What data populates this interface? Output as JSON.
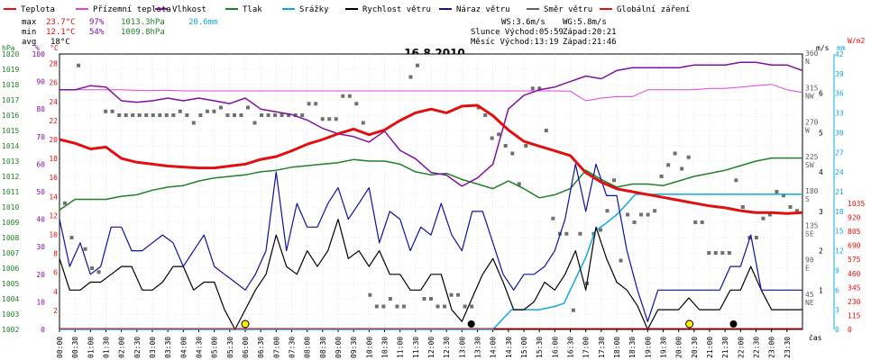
{
  "chart_data": {
    "type": "line",
    "title": "16.8.2010",
    "legend": [
      {
        "label": "Teplota",
        "color": "#e01010"
      },
      {
        "label": "Přízemní teplota",
        "color": "#e040e0"
      },
      {
        "label": "Vlhkost",
        "color": "#8010a0"
      },
      {
        "label": "Tlak",
        "color": "#20802a"
      },
      {
        "label": "Srážky",
        "color": "#10a8e0"
      },
      {
        "label": "Rychlost větru",
        "color": "#000000"
      },
      {
        "label": "Náraz větru",
        "color": "#1010a0"
      },
      {
        "label": "Směr větru",
        "color": "#606060"
      },
      {
        "label": "Globální záření",
        "color": "#e01010"
      }
    ],
    "stats": {
      "max_label": "max",
      "max_temp": "23.7°C",
      "max_hum": "97%",
      "max_press": "1013.3hPa",
      "max_rain": "20.6mm",
      "min_label": "min",
      "min_temp": "12.1°C",
      "min_hum": "54%",
      "min_press": "1009.8hPa",
      "avg_label": "avg",
      "avg_temp": "18°C",
      "ws": "WS:3.6m/s",
      "wg": "WG:5.8m/s",
      "sun_rise": "Slunce Východ:05:59",
      "sun_set": "Západ:20:21",
      "moon_rise": "Měsíc  Východ:13:19",
      "moon_set": "Západ:21:46"
    },
    "axes": {
      "hpa": {
        "unit": "hPa",
        "color": "#20802a",
        "ticks": [
          "1002",
          "1003",
          "1004",
          "1005",
          "1006",
          "1007",
          "1008",
          "1009",
          "1010",
          "1011",
          "1012",
          "1013",
          "1014",
          "1015",
          "1016",
          "1017",
          "1018",
          "1019",
          "1020"
        ],
        "range": [
          1002,
          1020
        ]
      },
      "pct": {
        "unit": "%",
        "color": "#8010a0",
        "ticks": [
          "0",
          "10",
          "20",
          "30",
          "40",
          "50",
          "60",
          "70",
          "80",
          "90",
          "100"
        ],
        "range": [
          0,
          100
        ]
      },
      "degc": {
        "unit": "°C",
        "color": "#e01010",
        "ticks": [
          "2",
          "4",
          "6",
          "8",
          "10",
          "12",
          "14",
          "16",
          "18",
          "20",
          "22",
          "24",
          "26",
          "28"
        ],
        "range": [
          0,
          29
        ]
      },
      "dir": {
        "ticks": [
          "45 NE",
          "90 E",
          "135 SE",
          "180 S",
          "225 SW",
          "270 W",
          "315 NW",
          "360 N"
        ]
      },
      "ms": {
        "unit": "m/s",
        "ticks": [
          "1",
          "2",
          "3",
          "4",
          "5",
          "6"
        ]
      },
      "mm": {
        "unit": "mm",
        "color": "#10a8e0",
        "ticks": [
          "0",
          "3",
          "6",
          "9",
          "12",
          "15",
          "18",
          "21",
          "24",
          "27",
          "30",
          "33",
          "36",
          "39",
          "42"
        ]
      },
      "wm2": {
        "unit": "W/m2",
        "color": "#e01010",
        "ticks": [
          "0",
          "115",
          "230",
          "345",
          "460",
          "575",
          "690",
          "805",
          "920",
          "1035"
        ]
      },
      "x_unit": "čas",
      "x_ticks": [
        "00:00",
        "00:30",
        "01:00",
        "01:30",
        "02:00",
        "02:30",
        "03:00",
        "03:30",
        "04:00",
        "04:30",
        "05:00",
        "05:30",
        "06:00",
        "06:30",
        "07:00",
        "07:30",
        "08:00",
        "08:30",
        "09:00",
        "09:30",
        "10:00",
        "10:30",
        "11:00",
        "11:30",
        "12:00",
        "12:30",
        "13:00",
        "13:30",
        "14:00",
        "14:30",
        "15:00",
        "15:30",
        "16:00",
        "16:30",
        "17:00",
        "17:30",
        "18:00",
        "18:30",
        "19:00",
        "19:30",
        "20:00",
        "20:30",
        "21:00",
        "21:30",
        "22:00",
        "22:30",
        "23:00",
        "23:30"
      ]
    },
    "series": [
      {
        "name": "Teplota",
        "color": "#e01010",
        "x": [
          0,
          0.5,
          1,
          1.5,
          2,
          2.5,
          3,
          3.5,
          4,
          4.5,
          5,
          5.5,
          6,
          6.5,
          7,
          7.5,
          8,
          8.5,
          9,
          9.5,
          10,
          10.5,
          11,
          11.5,
          12,
          12.5,
          13,
          13.5,
          14,
          14.5,
          15,
          15.5,
          16,
          16.5,
          17,
          17.5,
          18,
          18.5,
          19,
          19.5,
          20,
          20.5,
          21,
          21.5,
          22,
          22.5,
          23,
          23.5,
          24
        ],
        "y": [
          20,
          19.6,
          19,
          19.2,
          18,
          17.6,
          17.4,
          17.2,
          17.1,
          17,
          17,
          17.2,
          17.4,
          17.9,
          18.2,
          18.8,
          19.5,
          20,
          20.6,
          21.1,
          20.5,
          21,
          22,
          22.8,
          23.2,
          22.8,
          23.5,
          23.6,
          22.5,
          21,
          19.8,
          19.3,
          18.8,
          18.3,
          16.5,
          15.5,
          14.8,
          14.5,
          14.2,
          13.9,
          13.6,
          13.3,
          13,
          12.8,
          12.5,
          12.3,
          12.3,
          12.2,
          12.3
        ]
      },
      {
        "name": "Přízemní teplota",
        "color": "#e040e0",
        "x": [
          0,
          0.5,
          1,
          1.5,
          2,
          2.5,
          3,
          3.5,
          4,
          4.5,
          5,
          5.5,
          6,
          6.5,
          7,
          7.5,
          8,
          8.5,
          9,
          9.5,
          10,
          10.5,
          11,
          11.5,
          12,
          12.5,
          13,
          13.5,
          14,
          14.5,
          15,
          15.5,
          16,
          16.5,
          17,
          17.5,
          18,
          18.5,
          19,
          19.5,
          20,
          20.5,
          21,
          21.5,
          22,
          22.5,
          23,
          23.5,
          24
        ],
        "y": [
          87,
          87,
          87,
          87,
          87,
          86.8,
          86.8,
          86.8,
          86.6,
          86.6,
          86.6,
          86.6,
          86.6,
          86.6,
          86.6,
          86.6,
          86.6,
          86.6,
          86.6,
          86.6,
          86.6,
          86.6,
          86.6,
          86.6,
          86.6,
          86.6,
          86.6,
          86.6,
          86.6,
          86.6,
          86.6,
          86.6,
          86.6,
          86.5,
          83,
          84,
          84.5,
          84.5,
          87,
          87,
          87,
          87,
          87.5,
          87.5,
          88,
          88.5,
          89,
          87,
          86
        ]
      },
      {
        "name": "Vlhkost",
        "color": "#8010a0",
        "x": [
          0,
          0.5,
          1,
          1.5,
          2,
          2.5,
          3,
          3.5,
          4,
          4.5,
          5,
          5.5,
          6,
          6.5,
          7,
          7.5,
          8,
          8.5,
          9,
          9.5,
          10,
          10.5,
          11,
          11.5,
          12,
          12.5,
          13,
          13.5,
          14,
          14.5,
          15,
          15.5,
          16,
          16.5,
          17,
          17.5,
          18,
          18.5,
          19,
          19.5,
          20,
          20.5,
          21,
          21.5,
          22,
          22.5,
          23,
          23.5,
          24
        ],
        "y": [
          87,
          87,
          88.5,
          88,
          83,
          82.5,
          83,
          84,
          83,
          84,
          83,
          82,
          84,
          80,
          79,
          78,
          76,
          73,
          71,
          70,
          68,
          72,
          65,
          62,
          57,
          56,
          52,
          55,
          60,
          80,
          85,
          87,
          88,
          90,
          92,
          91,
          94,
          95,
          95,
          95,
          95,
          96,
          96,
          96,
          97,
          97,
          96,
          96,
          94
        ]
      },
      {
        "name": "Tlak",
        "color": "#20802a",
        "x": [
          0,
          0.5,
          1,
          1.5,
          2,
          2.5,
          3,
          3.5,
          4,
          4.5,
          5,
          5.5,
          6,
          6.5,
          7,
          7.5,
          8,
          8.5,
          9,
          9.5,
          10,
          10.5,
          11,
          11.5,
          12,
          12.5,
          13,
          13.5,
          14,
          14.5,
          15,
          15.5,
          16,
          16.5,
          17,
          17.5,
          18,
          18.5,
          19,
          19.5,
          20,
          20.5,
          21,
          21.5,
          22,
          22.5,
          23,
          23.5,
          24
        ],
        "y": [
          1009.8,
          1010.5,
          1010.5,
          1010.5,
          1010.7,
          1010.8,
          1011.1,
          1011.3,
          1011.4,
          1011.7,
          1011.9,
          1012,
          1012.1,
          1012.3,
          1012.4,
          1012.6,
          1012.7,
          1012.8,
          1012.9,
          1013.1,
          1013,
          1013,
          1012.8,
          1012.3,
          1012.1,
          1012.2,
          1011.8,
          1011.5,
          1011.2,
          1011.7,
          1011.2,
          1010.6,
          1010.8,
          1011.2,
          1012.4,
          1011.8,
          1011.3,
          1011.5,
          1011.5,
          1011.4,
          1011.7,
          1012,
          1012.2,
          1012.4,
          1012.7,
          1013,
          1013.2,
          1013.2,
          1013.2
        ]
      },
      {
        "name": "Srážky",
        "color": "#10a8e0",
        "x": [
          0,
          1,
          2,
          3,
          4,
          5,
          6,
          7,
          8,
          9,
          10,
          11,
          12,
          13,
          14,
          14.3,
          14.6,
          15,
          15.5,
          16,
          16.3,
          16.6,
          17,
          17.3,
          17.6,
          18,
          18.3,
          18.6,
          19,
          20,
          21,
          22,
          23,
          24
        ],
        "y": [
          0,
          0,
          0,
          0,
          0,
          0,
          0,
          0,
          0,
          0,
          0,
          0,
          0,
          0,
          0,
          1.5,
          3,
          3,
          3,
          3.5,
          4,
          7,
          11,
          15,
          16,
          17.5,
          19,
          20.6,
          20.6,
          20.6,
          20.6,
          20.6,
          20.6,
          20.6
        ]
      },
      {
        "name": "Rychlost větru",
        "color": "#000000",
        "x": [
          0,
          0.33,
          0.67,
          1,
          1.33,
          1.67,
          2,
          2.33,
          2.67,
          3,
          3.33,
          3.67,
          4,
          4.33,
          4.67,
          5,
          5.33,
          5.67,
          6,
          6.33,
          6.67,
          7,
          7.33,
          7.67,
          8,
          8.33,
          8.67,
          9,
          9.33,
          9.67,
          10,
          10.33,
          10.67,
          11,
          11.33,
          11.67,
          12,
          12.33,
          12.67,
          13,
          13.33,
          13.67,
          14,
          14.33,
          14.67,
          15,
          15.33,
          15.67,
          16,
          16.33,
          16.67,
          17,
          17.33,
          17.67,
          18,
          18.33,
          18.67,
          19,
          19.33,
          19.67,
          20,
          20.33,
          20.67,
          21,
          21.33,
          21.67,
          22,
          22.33,
          22.67,
          23,
          23.33,
          23.67,
          24
        ],
        "y": [
          1.8,
          1.0,
          1.0,
          1.2,
          1.2,
          1.4,
          1.6,
          1.6,
          1.0,
          1.0,
          1.2,
          1.6,
          1.6,
          1.0,
          1.2,
          1.2,
          0.5,
          0,
          0.5,
          1.0,
          1.4,
          2.4,
          1.6,
          1.4,
          2.0,
          1.6,
          2.0,
          2.8,
          1.8,
          2.0,
          1.6,
          2.0,
          1.4,
          1.4,
          1.0,
          1.0,
          1.4,
          1.4,
          0.5,
          0.2,
          0.8,
          1.4,
          1.8,
          1.2,
          0.5,
          0.5,
          0.7,
          1.2,
          1.0,
          1.4,
          2.0,
          1.0,
          2.6,
          1.8,
          1.2,
          1.0,
          0.6,
          0,
          0.5,
          0.5,
          0.5,
          0.8,
          0.5,
          0.5,
          0.5,
          1.0,
          1.0,
          1.6,
          1.0,
          0.5,
          0.5,
          0.5,
          0.5
        ]
      },
      {
        "name": "Náraz větru",
        "color": "#1010a0",
        "x": [
          0,
          0.33,
          0.67,
          1,
          1.33,
          1.67,
          2,
          2.33,
          2.67,
          3,
          3.33,
          3.67,
          4,
          4.33,
          4.67,
          5,
          5.33,
          5.67,
          6,
          6.33,
          6.67,
          7,
          7.33,
          7.67,
          8,
          8.33,
          8.67,
          9,
          9.33,
          9.67,
          10,
          10.33,
          10.67,
          11,
          11.33,
          11.67,
          12,
          12.33,
          12.67,
          13,
          13.33,
          13.67,
          14,
          14.33,
          14.67,
          15,
          15.33,
          15.67,
          16,
          16.33,
          16.67,
          17,
          17.33,
          17.67,
          18,
          18.33,
          18.67,
          19,
          19.33,
          19.67,
          20,
          20.33,
          20.67,
          21,
          21.33,
          21.67,
          22,
          22.33,
          22.67,
          23,
          23.33,
          23.67,
          24
        ],
        "y": [
          2.8,
          1.6,
          2.2,
          1.4,
          1.6,
          2.6,
          2.6,
          2.0,
          2.0,
          2.2,
          2.4,
          2.2,
          1.6,
          2.0,
          2.4,
          1.6,
          1.4,
          1.2,
          1.0,
          1.4,
          2.0,
          4.0,
          2.0,
          3.2,
          2.6,
          2.6,
          3.2,
          3.6,
          2.8,
          3.2,
          3.6,
          2.2,
          3.0,
          2.8,
          2.0,
          2.6,
          2.4,
          3.2,
          2.4,
          2.0,
          3.0,
          3.0,
          2.2,
          1.4,
          1.0,
          1.4,
          1.4,
          1.6,
          2.0,
          2.8,
          4.2,
          3.0,
          4.2,
          3.4,
          3.4,
          2.0,
          1.0,
          0.2,
          1.0,
          1.0,
          1.0,
          1.0,
          1.0,
          1.0,
          1.0,
          1.6,
          1.6,
          2.4,
          1.0,
          1.0,
          1.0,
          1.0,
          1.0
        ]
      }
    ],
    "wind_direction_deg": [
      165,
      120,
      345,
      105,
      80,
      75,
      285,
      285,
      280,
      280,
      280,
      280,
      280,
      280,
      280,
      280,
      280,
      285,
      280,
      270,
      280,
      285,
      285,
      290,
      280,
      280,
      280,
      290,
      270,
      280,
      280,
      280,
      280,
      280,
      280,
      280,
      295,
      295,
      275,
      275,
      275,
      305,
      305,
      295,
      270,
      45,
      30,
      30,
      40,
      30,
      30,
      330,
      345,
      40,
      40,
      30,
      30,
      45,
      45,
      30,
      30,
      290,
      280,
      250,
      255,
      240,
      230,
      190,
      240,
      315,
      315,
      260,
      145,
      125,
      125,
      25,
      125,
      60,
      125,
      130,
      155,
      195,
      90,
      150,
      140,
      150,
      150,
      155,
      200,
      215,
      230,
      210,
      225,
      140,
      140,
      100,
      100,
      100,
      100,
      195,
      160,
      120,
      120,
      145,
      150,
      180,
      175,
      160,
      155
    ],
    "markers": [
      {
        "label": "sunrise",
        "x": 6.0
      },
      {
        "label": "moonrise",
        "x": 13.3
      },
      {
        "label": "sunset",
        "x": 20.35
      },
      {
        "label": "moonset",
        "x": 21.77
      }
    ],
    "grid": true
  }
}
